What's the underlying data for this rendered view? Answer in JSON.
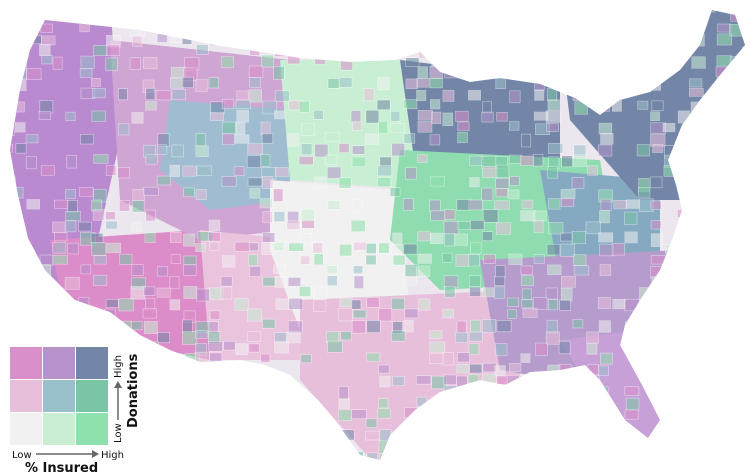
{
  "legend": {
    "x_axis": {
      "low": "Low",
      "high": "High",
      "title": "% Insured"
    },
    "y_axis": {
      "low": "Low",
      "high": "High",
      "title": "Donations"
    },
    "grid_rows": [
      [
        "#d98fc9",
        "#b693cb",
        "#7386a7"
      ],
      [
        "#e8bfdb",
        "#9ac0cb",
        "#79c5a6"
      ],
      [
        "#f1f1f1",
        "#c8efd3",
        "#8ee0ac"
      ]
    ]
  },
  "palette": {
    "state_fill": "#c9a6d8",
    "border": "#ffffff",
    "background": "#ffffff"
  },
  "regions": [
    {
      "name": "west-coast",
      "color": "#b98ad0"
    },
    {
      "name": "southwest",
      "color": "#dc8cc8"
    },
    {
      "name": "mountain-west",
      "color": "#cfa5d4"
    },
    {
      "name": "great-basin-insured",
      "color": "#9fbcd0"
    },
    {
      "name": "central-plains",
      "color": "#f1f1f1"
    },
    {
      "name": "northern-plains",
      "color": "#c8efd3"
    },
    {
      "name": "upper-midwest",
      "color": "#7386a7"
    },
    {
      "name": "midwest-mix",
      "color": "#8edcb0"
    },
    {
      "name": "appalachia",
      "color": "#86a9c2"
    },
    {
      "name": "northeast",
      "color": "#7386a7"
    },
    {
      "name": "south-central",
      "color": "#e8bfdb"
    },
    {
      "name": "southeast",
      "color": "#b69ccc"
    },
    {
      "name": "florida",
      "color": "#c7a0d8"
    },
    {
      "name": "texas-west",
      "color": "#eac4dd"
    }
  ]
}
